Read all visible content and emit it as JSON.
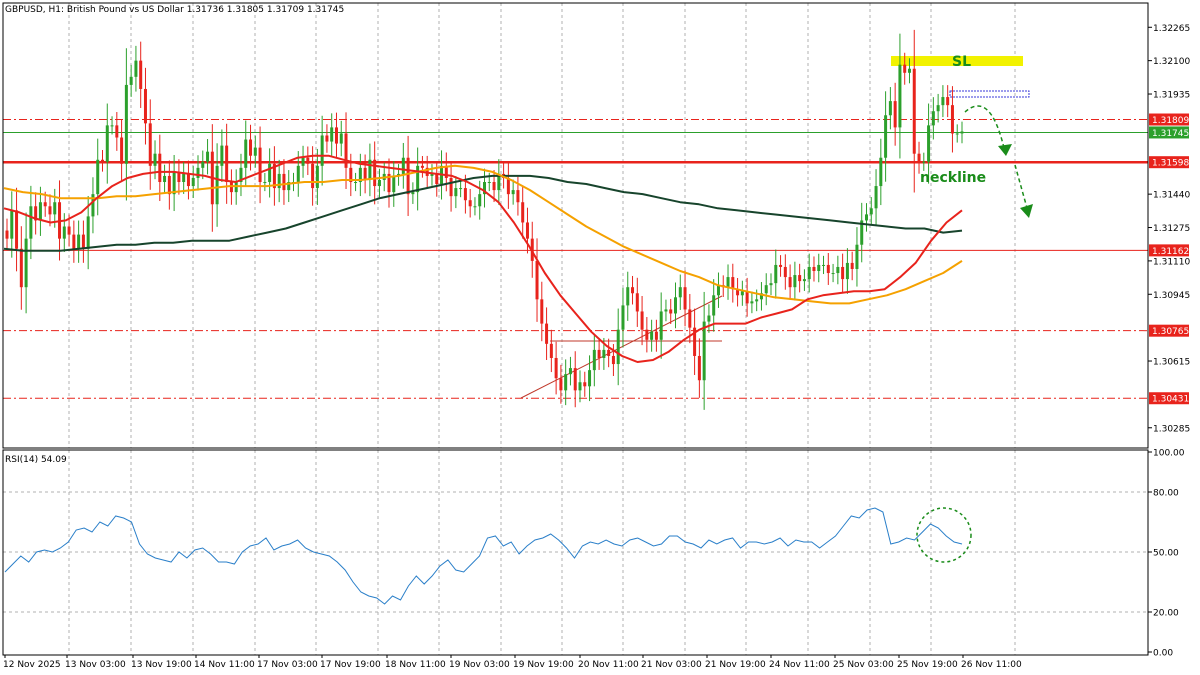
{
  "colors": {
    "bull": "#2ca02c",
    "bear": "#e8231c",
    "ma_fast": "#e8231c",
    "ma_mid": "#f5a100",
    "ma_slow": "#17442c",
    "rsi": "#2a7fc9",
    "level": "#e8231c",
    "current": "#2ca02c",
    "sl_zone": "#f2f200",
    "annotation": "#1a8c1a",
    "grid": "#b0b0b0"
  },
  "chart_data": [
    {
      "type": "line",
      "title": "GBPUSD, H1: British Pound vs US Dollar 1.31736 1.31805 1.31709 1.31745",
      "ohlc": {
        "open": 1.31736,
        "high": 1.31805,
        "low": 1.31709,
        "close": 1.31745
      },
      "ylim": [
        1.3018,
        1.3236
      ],
      "yticks": [
        "1.32265",
        "1.32100",
        "1.31935",
        "1.31440",
        "1.31275",
        "1.31110",
        "1.30945",
        "1.30615",
        "1.30285"
      ],
      "xticks": [
        "12 Nov 2025",
        "13 Nov 03:00",
        "13 Nov 19:00",
        "14 Nov 11:00",
        "17 Nov 03:00",
        "17 Nov 19:00",
        "18 Nov 11:00",
        "19 Nov 03:00",
        "19 Nov 19:00",
        "20 Nov 11:00",
        "21 Nov 03:00",
        "21 Nov 19:00",
        "24 Nov 11:00",
        "25 Nov 03:00",
        "25 Nov 19:00",
        "26 Nov 11:00"
      ],
      "grid": true,
      "price_levels": [
        {
          "label": "1.31809",
          "value": 1.31809,
          "style": "dashdot"
        },
        {
          "label": "1.31745",
          "value": 1.31745,
          "style": "current"
        },
        {
          "label": "1.31598",
          "value": 1.31598,
          "style": "thick"
        },
        {
          "label": "1.31162",
          "value": 1.31162,
          "style": "solid"
        },
        {
          "label": "1.30765",
          "value": 1.30765,
          "style": "dashdot"
        },
        {
          "label": "1.30431",
          "value": 1.30431,
          "style": "dashdot"
        }
      ],
      "series": [
        {
          "kind": "candles",
          "values": [
            1.3122,
            1.3136,
            1.3117,
            1.3098,
            1.3122,
            1.3138,
            1.3131,
            1.314,
            1.3138,
            1.3134,
            1.314,
            1.3122,
            1.3128,
            1.3124,
            1.3117,
            1.3124,
            1.3117,
            1.3133,
            1.3144,
            1.3161,
            1.316,
            1.3178,
            1.3178,
            1.3172,
            1.3159,
            1.3198,
            1.3202,
            1.321,
            1.3196,
            1.3179,
            1.3158,
            1.3164,
            1.315,
            1.3153,
            1.3144,
            1.3155,
            1.315,
            1.3154,
            1.3148,
            1.3152,
            1.3157,
            1.316,
            1.3165,
            1.3139,
            1.3158,
            1.3168,
            1.315,
            1.3145,
            1.315,
            1.3157,
            1.3171,
            1.3163,
            1.3167,
            1.315,
            1.315,
            1.3159,
            1.3147,
            1.3154,
            1.3146,
            1.315,
            1.315,
            1.3158,
            1.3162,
            1.3159,
            1.3147,
            1.3158,
            1.3173,
            1.317,
            1.3177,
            1.3169,
            1.3174,
            1.3157,
            1.315,
            1.315,
            1.3157,
            1.3151,
            1.3161,
            1.3148,
            1.3151,
            1.3154,
            1.3145,
            1.3153,
            1.3154,
            1.3162,
            1.3144,
            1.3145,
            1.3158,
            1.3157,
            1.3153,
            1.3154,
            1.3149,
            1.3158,
            1.3152,
            1.3143,
            1.3147,
            1.3147,
            1.3141,
            1.3138,
            1.3138,
            1.3144,
            1.315,
            1.315,
            1.3146,
            1.3154,
            1.3152,
            1.3144,
            1.3146,
            1.314,
            1.313,
            1.3122,
            1.3111,
            1.3092,
            1.308,
            1.307,
            1.3063,
            1.3053,
            1.3047,
            1.3055,
            1.3058,
            1.3047,
            1.3051,
            1.3049,
            1.3057,
            1.3067,
            1.3063,
            1.3067,
            1.3064,
            1.306,
            1.3077,
            1.3089,
            1.3098,
            1.3095,
            1.3086,
            1.3077,
            1.3072,
            1.3076,
            1.3072,
            1.3086,
            1.3087,
            1.3085,
            1.3093,
            1.3098,
            1.3087,
            1.3078,
            1.3064,
            1.3052,
            1.3081,
            1.3084,
            1.3094,
            1.3099,
            1.3098,
            1.3103,
            1.3097,
            1.3094,
            1.3096,
            1.309,
            1.3091,
            1.3092,
            1.3095,
            1.3099,
            1.31,
            1.3109,
            1.3108,
            1.3103,
            1.3098,
            1.3104,
            1.3101,
            1.3102,
            1.3108,
            1.3106,
            1.3109,
            1.3109,
            1.3105,
            1.3105,
            1.3108,
            1.3102,
            1.311,
            1.3107,
            1.3119,
            1.3131,
            1.3134,
            1.3137,
            1.3148,
            1.3162,
            1.3183,
            1.319,
            1.3177,
            1.3208,
            1.3204,
            1.3206,
            1.3164,
            1.316,
            1.316,
            1.3178,
            1.3185,
            1.3188,
            1.3192,
            1.3188,
            1.3174,
            1.3174,
            1.3175
          ]
        },
        {
          "name": "",
          "kind": "ma_fast",
          "values": [
            1.3137,
            1.3135,
            1.3132,
            1.313,
            1.3131,
            1.3135,
            1.3142,
            1.3148,
            1.3152,
            1.3154,
            1.3155,
            1.3155,
            1.3154,
            1.3153,
            1.3151,
            1.315,
            1.3153,
            1.3156,
            1.3159,
            1.3162,
            1.3163,
            1.3163,
            1.3161,
            1.3159,
            1.3158,
            1.3157,
            1.3156,
            1.3155,
            1.3154,
            1.3153,
            1.315,
            1.3146,
            1.314,
            1.313,
            1.3118,
            1.3105,
            1.3094,
            1.3085,
            1.3076,
            1.3069,
            1.3064,
            1.3061,
            1.3062,
            1.3066,
            1.3072,
            1.3077,
            1.308,
            1.308,
            1.308,
            1.3083,
            1.3085,
            1.3087,
            1.3092,
            1.3094,
            1.3095,
            1.3096,
            1.3096,
            1.3097,
            1.3103,
            1.311,
            1.3121,
            1.313,
            1.3136
          ]
        },
        {
          "name": "",
          "kind": "ma_mid",
          "values": [
            1.3147,
            1.3145,
            1.3144,
            1.3142,
            1.3142,
            1.3142,
            1.3143,
            1.3143,
            1.3144,
            1.3145,
            1.3146,
            1.3147,
            1.3148,
            1.3148,
            1.3148,
            1.3149,
            1.315,
            1.315,
            1.3151,
            1.3151,
            1.3152,
            1.3153,
            1.3155,
            1.3157,
            1.3158,
            1.3157,
            1.3155,
            1.3151,
            1.3146,
            1.314,
            1.3134,
            1.3128,
            1.3123,
            1.3118,
            1.3114,
            1.311,
            1.3106,
            1.3103,
            1.3099,
            1.3097,
            1.3095,
            1.3093,
            1.3092,
            1.3091,
            1.309,
            1.309,
            1.3092,
            1.3094,
            1.3097,
            1.3101,
            1.3105,
            1.3111
          ]
        },
        {
          "name": "",
          "kind": "ma_slow",
          "values": [
            1.3117,
            1.3116,
            1.3116,
            1.3116,
            1.3117,
            1.3118,
            1.3119,
            1.3119,
            1.312,
            1.312,
            1.3121,
            1.3121,
            1.3121,
            1.3123,
            1.3125,
            1.3127,
            1.313,
            1.3133,
            1.3136,
            1.3139,
            1.3142,
            1.3144,
            1.3146,
            1.3148,
            1.315,
            1.3152,
            1.3153,
            1.3153,
            1.3153,
            1.3152,
            1.315,
            1.3149,
            1.3147,
            1.3145,
            1.3144,
            1.3142,
            1.314,
            1.3139,
            1.3137,
            1.3136,
            1.3135,
            1.3134,
            1.3133,
            1.3132,
            1.3131,
            1.313,
            1.3129,
            1.3128,
            1.3127,
            1.3127,
            1.3125,
            1.3126
          ]
        }
      ],
      "annotations": [
        {
          "text": "SL",
          "kind": "zone",
          "value": 1.3212
        },
        {
          "text": "neckline",
          "kind": "label",
          "value": 1.3157
        }
      ]
    },
    {
      "type": "line",
      "title": "RSI(14) 54.09",
      "ylim": [
        0,
        100
      ],
      "yticks": [
        "100.00",
        "80.00",
        "50.00",
        "20.00",
        "0.00"
      ],
      "levels": [
        80,
        50,
        20
      ],
      "series": [
        {
          "name": "",
          "values": [
            40,
            44,
            48,
            45,
            50,
            51,
            50,
            52,
            55,
            61,
            62,
            60,
            65,
            63,
            68,
            67,
            65,
            54,
            49,
            47,
            46,
            45,
            50,
            47,
            51,
            52,
            49,
            45,
            45,
            44,
            50,
            53,
            54,
            57,
            51,
            53,
            54,
            56,
            52,
            50,
            49,
            48,
            45,
            41,
            35,
            30,
            28,
            27,
            24,
            28,
            26,
            33,
            38,
            34,
            38,
            43,
            46,
            41,
            40,
            44,
            48,
            57,
            58,
            53,
            55,
            49,
            53,
            56,
            57,
            59,
            56,
            52,
            47,
            53,
            55,
            54,
            56,
            54,
            53,
            56,
            57,
            55,
            53,
            54,
            58,
            58,
            55,
            54,
            52,
            56,
            54,
            56,
            57,
            52,
            55,
            55,
            54,
            55,
            57,
            53,
            56,
            55,
            55,
            52,
            55,
            58,
            63,
            68,
            67,
            71,
            72,
            70,
            54,
            55,
            57,
            56,
            60,
            64,
            62,
            58,
            55,
            54
          ]
        }
      ]
    }
  ]
}
